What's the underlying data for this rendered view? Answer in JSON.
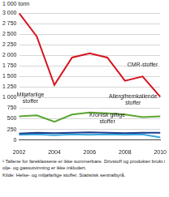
{
  "chart_data": {
    "type": "line",
    "ylabel": "1 000 tonn",
    "categories": [
      "2002",
      null,
      "2004",
      null,
      "2006",
      null,
      "2008",
      null,
      "2010"
    ],
    "series": [
      {
        "name": "CMR-stoffer",
        "color": "#d7141f",
        "values": [
          3000,
          2450,
          1300,
          1950,
          2050,
          1950,
          1400,
          1500,
          1020
        ]
      },
      {
        "name": "Allergifremkallende stoffer",
        "color": "#5aa532",
        "values": [
          560,
          580,
          430,
          600,
          650,
          630,
          600,
          540,
          560
        ]
      },
      {
        "name": "Miljøfarlige stoffer",
        "color": "#1d3d8c",
        "values": [
          150,
          170,
          160,
          170,
          180,
          170,
          160,
          170,
          170
        ]
      },
      {
        "name": "Kronisk giftige stoffer",
        "color": "#38a8dc",
        "values": [
          120,
          130,
          110,
          130,
          120,
          130,
          120,
          130,
          60
        ]
      }
    ],
    "ylim": [
      0,
      3000
    ],
    "yticks": [
      0,
      250,
      500,
      750,
      {
        "value": 1000,
        "label": "1 000"
      },
      {
        "value": 1250,
        "label": "1 250"
      },
      {
        "value": 1500,
        "label": "1 500"
      },
      {
        "value": 1750,
        "label": "1 750"
      },
      {
        "value": 2000,
        "label": "2 000"
      },
      {
        "value": 2250,
        "label": "2 250"
      },
      {
        "value": 2500,
        "label": "2 500"
      },
      {
        "value": 2750,
        "label": "2 750"
      },
      {
        "value": 3000,
        "label": "3 000"
      }
    ],
    "grid": true,
    "legend": false,
    "footnote": "¹ Tallene for fareklassene er ikke summerbare. Drivstoff og produkter brukt i olje- og gassutvinning er ikke inkludert.",
    "source": "Kilde: Helse- og miljøfarlige stoffer, Statistisk sentralbyrå."
  }
}
